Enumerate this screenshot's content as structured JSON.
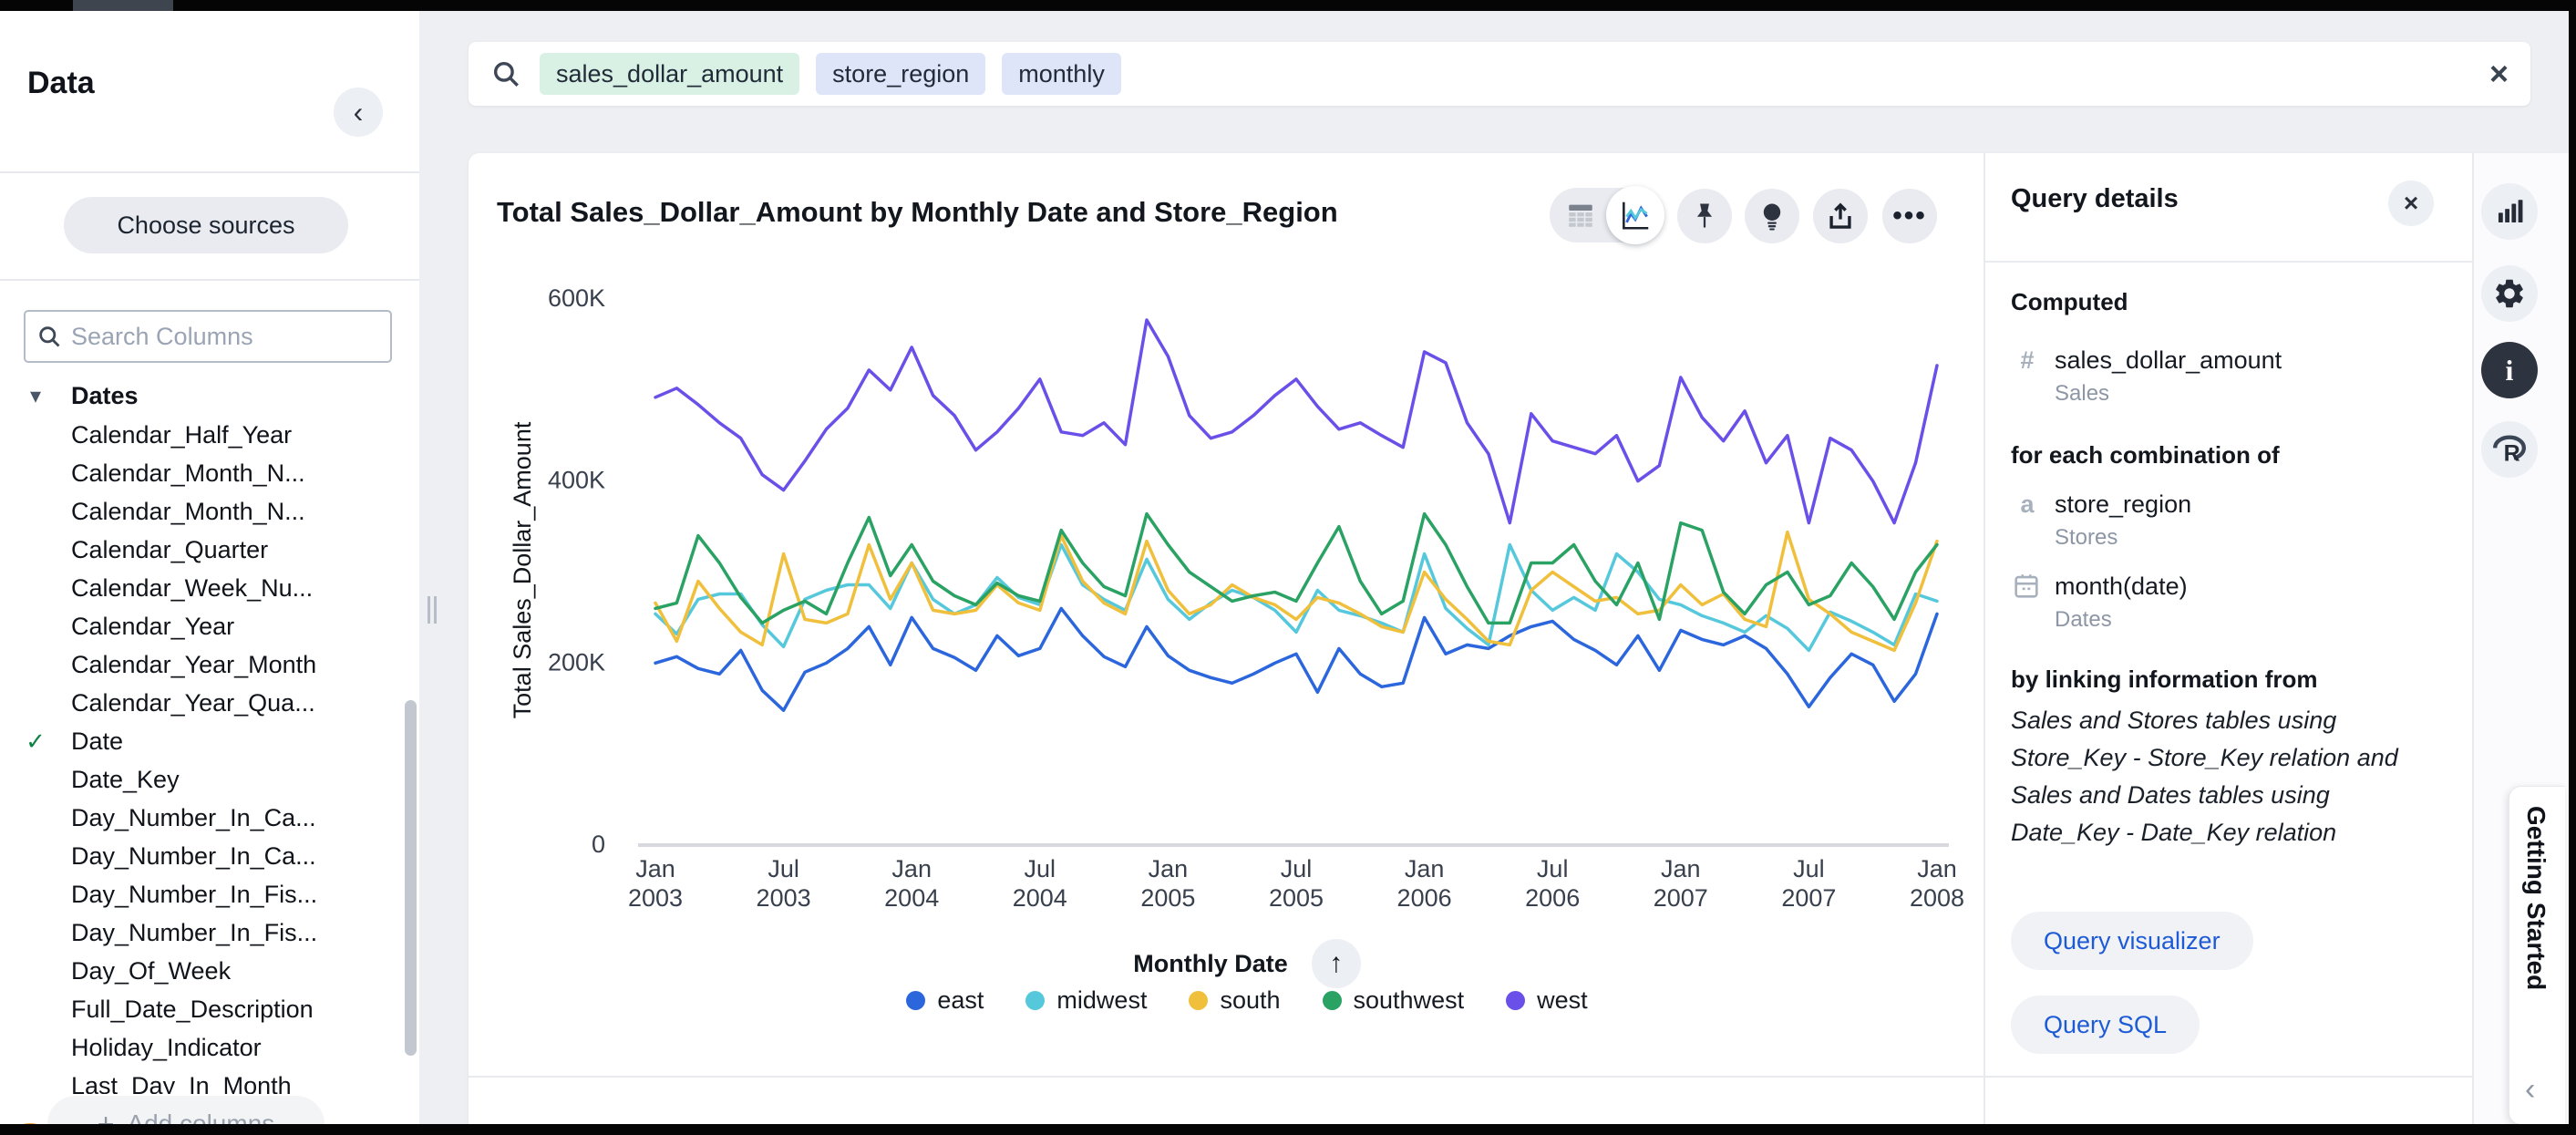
{
  "sidebar": {
    "title": "Data",
    "collapse_icon": "‹",
    "choose_sources_label": "Choose sources",
    "search_placeholder": "Search Columns",
    "group": {
      "label": "Dates",
      "caret": "▾",
      "expanded": true
    },
    "columns": [
      {
        "label": "Calendar_Half_Year",
        "checked": false
      },
      {
        "label": "Calendar_Month_N...",
        "checked": false
      },
      {
        "label": "Calendar_Month_N...",
        "checked": false
      },
      {
        "label": "Calendar_Quarter",
        "checked": false
      },
      {
        "label": "Calendar_Week_Nu...",
        "checked": false
      },
      {
        "label": "Calendar_Year",
        "checked": false
      },
      {
        "label": "Calendar_Year_Month",
        "checked": false
      },
      {
        "label": "Calendar_Year_Qua...",
        "checked": false
      },
      {
        "label": "Date",
        "checked": true
      },
      {
        "label": "Date_Key",
        "checked": false
      },
      {
        "label": "Day_Number_In_Ca...",
        "checked": false
      },
      {
        "label": "Day_Number_In_Ca...",
        "checked": false
      },
      {
        "label": "Day_Number_In_Fis...",
        "checked": false
      },
      {
        "label": "Day_Number_In_Fis...",
        "checked": false
      },
      {
        "label": "Day_Of_Week",
        "checked": false
      },
      {
        "label": "Full_Date_Description",
        "checked": false
      },
      {
        "label": "Holiday_Indicator",
        "checked": false
      },
      {
        "label": "Last_Day_In_Month",
        "checked": false
      }
    ],
    "check_glyph": "✓",
    "add_columns_plus": "+",
    "add_columns_label": "Add columns"
  },
  "search_bar": {
    "tokens": [
      {
        "text": "sales_dollar_amount",
        "kind": "measure"
      },
      {
        "text": "store_region",
        "kind": "attribute"
      },
      {
        "text": "monthly",
        "kind": "attribute"
      }
    ],
    "close_glyph": "×"
  },
  "chart_header": {
    "title": "Total Sales_Dollar_Amount by Monthly Date and Store_Region",
    "more_glyph": "•••"
  },
  "chart_data": {
    "type": "line",
    "title": "Total Sales_Dollar_Amount by Monthly Date and Store_Region",
    "xlabel": "Monthly Date",
    "ylabel": "Total Sales_Dollar_Amount",
    "value_unit": "thousands of dollars",
    "ylim": [
      0,
      600
    ],
    "grid": false,
    "legend_position": "bottom",
    "y_ticks": [
      {
        "v": 0,
        "label": "0"
      },
      {
        "v": 200,
        "label": "200K"
      },
      {
        "v": 400,
        "label": "400K"
      },
      {
        "v": 600,
        "label": "600K"
      }
    ],
    "x_tick_positions": [
      0,
      6,
      12,
      18,
      24,
      30,
      36,
      42,
      48,
      54,
      60
    ],
    "x_tick_labels": [
      {
        "month": "Jan",
        "year": "2003"
      },
      {
        "month": "Jul",
        "year": "2003"
      },
      {
        "month": "Jan",
        "year": "2004"
      },
      {
        "month": "Jul",
        "year": "2004"
      },
      {
        "month": "Jan",
        "year": "2005"
      },
      {
        "month": "Jul",
        "year": "2005"
      },
      {
        "month": "Jan",
        "year": "2006"
      },
      {
        "month": "Jul",
        "year": "2006"
      },
      {
        "month": "Jan",
        "year": "2007"
      },
      {
        "month": "Jul",
        "year": "2007"
      },
      {
        "month": "Jan",
        "year": "2008"
      }
    ],
    "x": [
      "Jan 2003",
      "Feb 2003",
      "Mar 2003",
      "Apr 2003",
      "May 2003",
      "Jun 2003",
      "Jul 2003",
      "Aug 2003",
      "Sep 2003",
      "Oct 2003",
      "Nov 2003",
      "Dec 2003",
      "Jan 2004",
      "Feb 2004",
      "Mar 2004",
      "Apr 2004",
      "May 2004",
      "Jun 2004",
      "Jul 2004",
      "Aug 2004",
      "Sep 2004",
      "Oct 2004",
      "Nov 2004",
      "Dec 2004",
      "Jan 2005",
      "Feb 2005",
      "Mar 2005",
      "Apr 2005",
      "May 2005",
      "Jun 2005",
      "Jul 2005",
      "Aug 2005",
      "Sep 2005",
      "Oct 2005",
      "Nov 2005",
      "Dec 2005",
      "Jan 2006",
      "Feb 2006",
      "Mar 2006",
      "Apr 2006",
      "May 2006",
      "Jun 2006",
      "Jul 2006",
      "Aug 2006",
      "Sep 2006",
      "Oct 2006",
      "Nov 2006",
      "Dec 2006",
      "Jan 2007",
      "Feb 2007",
      "Mar 2007",
      "Apr 2007",
      "May 2007",
      "Jun 2007",
      "Jul 2007",
      "Aug 2007",
      "Sep 2007",
      "Oct 2007",
      "Nov 2007",
      "Dec 2007",
      "Jan 2008"
    ],
    "series": [
      {
        "name": "east",
        "color": "#2b66dd",
        "values": [
          198,
          205,
          192,
          186,
          212,
          168,
          146,
          188,
          198,
          214,
          238,
          196,
          248,
          214,
          204,
          190,
          228,
          206,
          214,
          258,
          228,
          205,
          194,
          238,
          206,
          190,
          182,
          176,
          186,
          198,
          208,
          166,
          214,
          186,
          172,
          176,
          248,
          208,
          218,
          214,
          228,
          238,
          244,
          224,
          212,
          196,
          228,
          190,
          234,
          224,
          218,
          228,
          214,
          186,
          150,
          182,
          208,
          196,
          156,
          186,
          252
        ]
      },
      {
        "name": "midwest",
        "color": "#56c8dc",
        "values": [
          252,
          230,
          268,
          274,
          274,
          240,
          216,
          268,
          278,
          284,
          284,
          258,
          308,
          268,
          252,
          262,
          292,
          270,
          262,
          328,
          284,
          268,
          256,
          312,
          268,
          246,
          264,
          278,
          270,
          256,
          232,
          278,
          256,
          250,
          242,
          232,
          318,
          258,
          236,
          218,
          328,
          278,
          256,
          270,
          256,
          318,
          298,
          268,
          262,
          250,
          242,
          232,
          250,
          236,
          212,
          254,
          244,
          232,
          218,
          274,
          266
        ]
      },
      {
        "name": "south",
        "color": "#f0bf3c",
        "values": [
          264,
          222,
          288,
          258,
          232,
          218,
          318,
          246,
          242,
          252,
          328,
          268,
          308,
          256,
          252,
          256,
          284,
          264,
          256,
          338,
          288,
          264,
          252,
          332,
          278,
          252,
          262,
          284,
          270,
          262,
          246,
          270,
          264,
          252,
          238,
          232,
          298,
          268,
          246,
          222,
          218,
          278,
          298,
          282,
          266,
          270,
          252,
          256,
          284,
          262,
          274,
          246,
          238,
          342,
          268,
          252,
          232,
          222,
          212,
          264,
          332
        ]
      },
      {
        "name": "southwest",
        "color": "#2aa263",
        "values": [
          258,
          264,
          338,
          308,
          270,
          242,
          256,
          266,
          252,
          308,
          358,
          294,
          328,
          288,
          272,
          262,
          286,
          272,
          266,
          344,
          308,
          282,
          272,
          362,
          328,
          298,
          282,
          266,
          272,
          276,
          266,
          308,
          348,
          288,
          252,
          266,
          362,
          328,
          282,
          242,
          242,
          308,
          308,
          328,
          288,
          262,
          308,
          246,
          352,
          344,
          276,
          252,
          284,
          298,
          262,
          272,
          308,
          282,
          246,
          298,
          328
        ]
      },
      {
        "name": "west",
        "color": "#6b4fe9",
        "values": [
          490,
          500,
          482,
          462,
          445,
          405,
          388,
          420,
          455,
          478,
          520,
          498,
          545,
          492,
          470,
          432,
          452,
          478,
          510,
          452,
          448,
          462,
          438,
          575,
          535,
          470,
          445,
          452,
          470,
          492,
          510,
          480,
          455,
          462,
          448,
          435,
          540,
          528,
          462,
          428,
          352,
          472,
          442,
          435,
          428,
          448,
          398,
          415,
          512,
          468,
          442,
          475,
          418,
          448,
          352,
          445,
          432,
          398,
          352,
          418,
          525
        ]
      }
    ]
  },
  "x_axis": {
    "label": "Monthly Date",
    "sort_glyph": "↑"
  },
  "query_details": {
    "title": "Query details",
    "close_glyph": "×",
    "computed_heading": "Computed",
    "computed": {
      "icon_glyph": "#",
      "name": "sales_dollar_amount",
      "table": "Sales"
    },
    "combination_heading": "for each combination of",
    "group_by": [
      {
        "icon_glyph": "a",
        "name": "store_region",
        "table": "Stores"
      },
      {
        "icon": "calendar",
        "name": "month(date)",
        "table": "Dates"
      }
    ],
    "linking_heading": "by linking information from",
    "linking_lines": [
      "Sales and Stores tables using",
      "Store_Key - Store_Key relation and",
      "Sales and Dates tables using",
      "Date_Key - Date_Key relation"
    ],
    "buttons": {
      "visualizer_label": "Query visualizer",
      "sql_label": "Query SQL"
    }
  },
  "right_rail": {
    "icons": [
      {
        "name": "chart",
        "active": false
      },
      {
        "name": "settings",
        "active": false
      },
      {
        "name": "info",
        "active": true
      },
      {
        "name": "r-logo",
        "active": false
      }
    ],
    "info_glyph": "i",
    "r_glyph": "R"
  },
  "getting_started": {
    "label": "Getting Started",
    "collapse_icon": "‹"
  }
}
